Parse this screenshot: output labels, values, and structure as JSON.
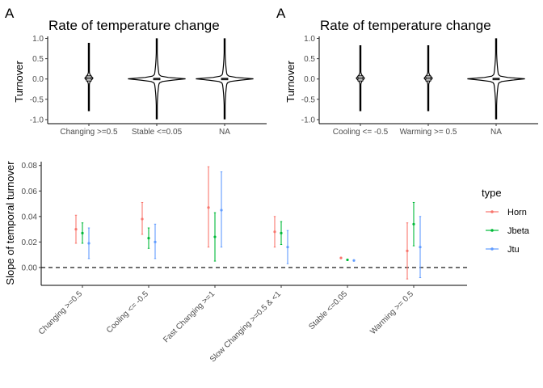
{
  "chart_data": [
    {
      "type": "violin",
      "panel_label": "A",
      "title": "Rate of temperature change",
      "ylabel": "Turnover",
      "xlabel": "",
      "categories": [
        "Changing >=0.5",
        "Stable <=0.05",
        "NA"
      ],
      "ylim": [
        -1.1,
        1.05
      ],
      "yticks": [
        -1.0,
        -0.5,
        0.0,
        0.5,
        1.0
      ],
      "ytick_labels": [
        "-1.0",
        "-0.5",
        "0.0",
        "0.5",
        "1.0"
      ],
      "violins": [
        {
          "category": "Changing >=0.5",
          "min": -0.78,
          "max": 0.88,
          "median": 0.02,
          "q1": -0.05,
          "q3": 0.08,
          "width": 0.06
        },
        {
          "category": "Stable <=0.05",
          "min": -0.98,
          "max": 0.99,
          "median": 0.0,
          "q1": -0.02,
          "q3": 0.02,
          "width": 0.45
        },
        {
          "category": "NA",
          "min": -0.98,
          "max": 0.99,
          "median": 0.0,
          "q1": -0.02,
          "q3": 0.02,
          "width": 0.45
        }
      ]
    },
    {
      "type": "violin",
      "panel_label": "A",
      "title": "Rate of temperature change",
      "ylabel": "Turnover",
      "xlabel": "",
      "categories": [
        "Cooling <= -0.5",
        "Warming >= 0.5",
        "NA"
      ],
      "ylim": [
        -1.1,
        1.05
      ],
      "yticks": [
        -1.0,
        -0.5,
        0.0,
        0.5,
        1.0
      ],
      "ytick_labels": [
        "-1.0",
        "-0.5",
        "0.0",
        "0.5",
        "1.0"
      ],
      "violins": [
        {
          "category": "Cooling <= -0.5",
          "min": -0.78,
          "max": 0.82,
          "median": 0.02,
          "q1": -0.05,
          "q3": 0.08,
          "width": 0.06
        },
        {
          "category": "Warming >= 0.5",
          "min": -0.78,
          "max": 0.82,
          "median": 0.02,
          "q1": -0.05,
          "q3": 0.08,
          "width": 0.06
        },
        {
          "category": "NA",
          "min": -0.98,
          "max": 0.99,
          "median": 0.0,
          "q1": -0.02,
          "q3": 0.02,
          "width": 0.45
        }
      ]
    },
    {
      "type": "errorbar",
      "title": "",
      "xlabel": "",
      "ylabel": "Slope of temporal turnover",
      "categories": [
        "Changing >=0.5",
        "Cooling <= -0.5",
        "Fast Changing >=1",
        "Slow Changing >=0.5 & <1",
        "Stable <=0.05",
        "Warming >= 0.5"
      ],
      "ylim": [
        -0.014,
        0.083
      ],
      "yticks": [
        0.0,
        0.02,
        0.04,
        0.06,
        0.08
      ],
      "ytick_labels": [
        "0.00",
        "0.02",
        "0.04",
        "0.06",
        "0.08"
      ],
      "hline": 0,
      "legend_title": "type",
      "legend_position": "right",
      "series": [
        {
          "name": "Horn",
          "color": "#F8766D",
          "values": [
            0.03,
            0.038,
            0.047,
            0.028,
            0.0075,
            0.013
          ],
          "lower": [
            0.019,
            0.026,
            0.016,
            0.016,
            0.007,
            -0.009
          ],
          "upper": [
            0.041,
            0.051,
            0.079,
            0.04,
            0.008,
            0.035
          ]
        },
        {
          "name": "Jbeta",
          "color": "#00BA38",
          "values": [
            0.027,
            0.023,
            0.024,
            0.027,
            0.006,
            0.034
          ],
          "lower": [
            0.019,
            0.015,
            0.005,
            0.018,
            0.0057,
            0.017
          ],
          "upper": [
            0.035,
            0.031,
            0.043,
            0.036,
            0.0063,
            0.051
          ]
        },
        {
          "name": "Jtu",
          "color": "#619CFF",
          "values": [
            0.019,
            0.02,
            0.045,
            0.016,
            0.0055,
            0.016
          ],
          "lower": [
            0.007,
            0.007,
            0.016,
            0.003,
            0.0052,
            -0.008
          ],
          "upper": [
            0.031,
            0.034,
            0.075,
            0.029,
            0.0058,
            0.04
          ]
        }
      ]
    }
  ]
}
